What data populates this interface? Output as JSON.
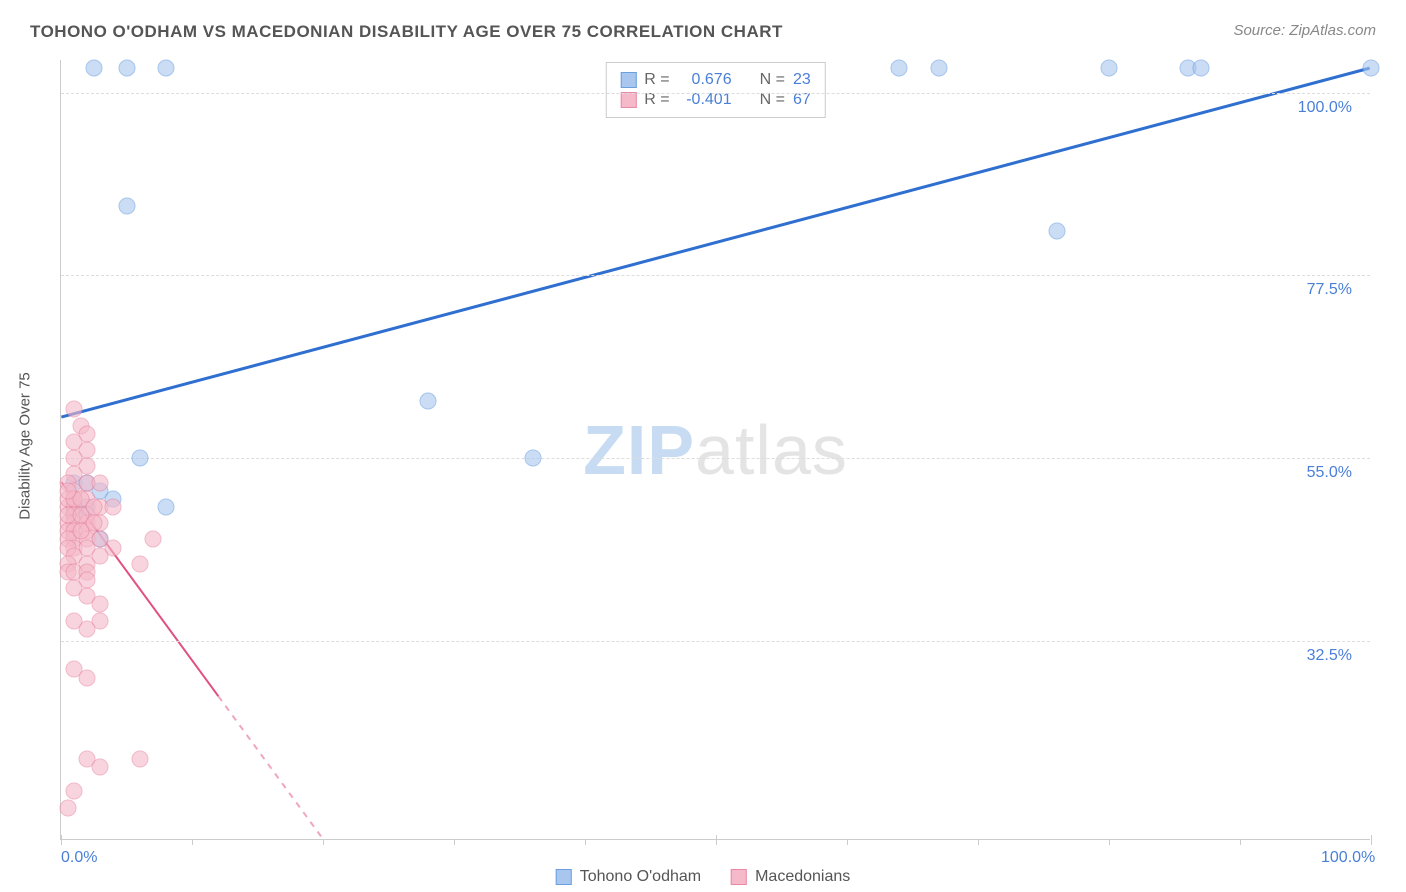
{
  "title": "TOHONO O'ODHAM VS MACEDONIAN DISABILITY AGE OVER 75 CORRELATION CHART",
  "source": "Source: ZipAtlas.com",
  "ylabel": "Disability Age Over 75",
  "watermark": {
    "zip": "ZIP",
    "atlas": "atlas"
  },
  "chart": {
    "type": "scatter",
    "xlim": [
      0,
      100
    ],
    "ylim": [
      8,
      104
    ],
    "yticks": [
      {
        "value": 32.5,
        "label": "32.5%"
      },
      {
        "value": 55.0,
        "label": "55.0%"
      },
      {
        "value": 77.5,
        "label": "77.5%"
      },
      {
        "value": 100.0,
        "label": "100.0%"
      }
    ],
    "xticks_major": [
      0,
      50,
      100
    ],
    "xticks_minor": [
      10,
      20,
      30,
      40,
      60,
      70,
      80,
      90
    ],
    "xtick_labels": [
      {
        "value": 0,
        "label": "0.0%"
      },
      {
        "value": 100,
        "label": "100.0%"
      }
    ],
    "background_color": "#ffffff",
    "grid_color": "#dddddd",
    "marker_size": 17,
    "marker_opacity": 0.6
  },
  "series": [
    {
      "name": "Tohono O'odham",
      "color_fill": "#a9c6ef",
      "color_stroke": "#6b9fe0",
      "trend": {
        "x1": 0,
        "y1": 60,
        "x2": 100,
        "y2": 103,
        "color": "#2f6fd0",
        "width": 3,
        "dash": "none"
      },
      "R": "0.676",
      "N": "23",
      "points": [
        [
          2.5,
          103
        ],
        [
          5,
          103
        ],
        [
          8,
          103
        ],
        [
          64,
          103
        ],
        [
          67,
          103
        ],
        [
          80,
          103
        ],
        [
          86,
          103
        ],
        [
          87,
          103
        ],
        [
          100,
          103
        ],
        [
          5,
          86
        ],
        [
          76,
          83
        ],
        [
          28,
          62
        ],
        [
          36,
          55
        ],
        [
          6,
          55
        ],
        [
          1,
          52
        ],
        [
          2,
          52
        ],
        [
          3,
          51
        ],
        [
          2,
          49
        ],
        [
          4,
          50
        ],
        [
          1,
          48
        ],
        [
          8,
          49
        ],
        [
          3,
          45
        ],
        [
          1,
          49
        ]
      ]
    },
    {
      "name": "Macedonians",
      "color_fill": "#f5b9c9",
      "color_stroke": "#e889a3",
      "trend": {
        "x1": 0,
        "y1": 52,
        "x2": 20,
        "y2": 8,
        "color": "#e05080",
        "width": 2,
        "dash_solid_to_x": 12
      },
      "R": "-0.401",
      "N": "67",
      "points": [
        [
          1,
          61
        ],
        [
          1.5,
          59
        ],
        [
          2,
          58
        ],
        [
          1,
          57
        ],
        [
          2,
          56
        ],
        [
          1,
          55
        ],
        [
          2,
          54
        ],
        [
          1,
          53
        ],
        [
          0.5,
          52
        ],
        [
          2,
          52
        ],
        [
          1,
          51
        ],
        [
          1,
          50
        ],
        [
          2,
          50
        ],
        [
          0.5,
          49
        ],
        [
          1,
          49
        ],
        [
          3,
          49
        ],
        [
          1,
          48
        ],
        [
          2,
          48
        ],
        [
          0.5,
          47
        ],
        [
          1,
          47
        ],
        [
          2,
          47
        ],
        [
          3,
          47
        ],
        [
          0.5,
          46
        ],
        [
          1,
          46
        ],
        [
          2,
          46
        ],
        [
          1,
          45
        ],
        [
          0.5,
          45
        ],
        [
          2,
          45
        ],
        [
          3,
          45
        ],
        [
          1,
          44
        ],
        [
          0.5,
          44
        ],
        [
          2,
          44
        ],
        [
          1,
          43
        ],
        [
          0.5,
          42
        ],
        [
          2,
          42
        ],
        [
          0.5,
          41
        ],
        [
          1,
          41
        ],
        [
          2,
          41
        ],
        [
          0.5,
          50
        ],
        [
          0.5,
          48
        ],
        [
          1,
          50
        ],
        [
          1.5,
          50
        ],
        [
          2.5,
          49
        ],
        [
          1.5,
          48
        ],
        [
          2.5,
          47
        ],
        [
          0.5,
          51
        ],
        [
          1.5,
          46
        ],
        [
          7,
          45
        ],
        [
          2,
          38
        ],
        [
          3,
          37
        ],
        [
          3,
          35
        ],
        [
          2,
          34
        ],
        [
          1,
          29
        ],
        [
          2,
          28
        ],
        [
          6,
          42
        ],
        [
          1,
          35
        ],
        [
          2,
          18
        ],
        [
          3,
          17
        ],
        [
          6,
          18
        ],
        [
          0.5,
          12
        ],
        [
          1,
          14
        ],
        [
          4,
          49
        ],
        [
          3,
          52
        ],
        [
          4,
          44
        ],
        [
          3,
          43
        ],
        [
          2,
          40
        ],
        [
          1,
          39
        ]
      ]
    }
  ],
  "legend_box": {
    "rows": [
      {
        "swatch_fill": "#a9c6ef",
        "swatch_stroke": "#6b9fe0",
        "r_label": "R =",
        "r_val": "0.676",
        "n_label": "N =",
        "n_val": "23"
      },
      {
        "swatch_fill": "#f5b9c9",
        "swatch_stroke": "#e889a3",
        "r_label": "R =",
        "r_val": "-0.401",
        "n_label": "N =",
        "n_val": "67"
      }
    ]
  },
  "bottom_legend": [
    {
      "swatch_fill": "#a9c6ef",
      "swatch_stroke": "#6b9fe0",
      "label": "Tohono O'odham"
    },
    {
      "swatch_fill": "#f5b9c9",
      "swatch_stroke": "#e889a3",
      "label": "Macedonians"
    }
  ]
}
